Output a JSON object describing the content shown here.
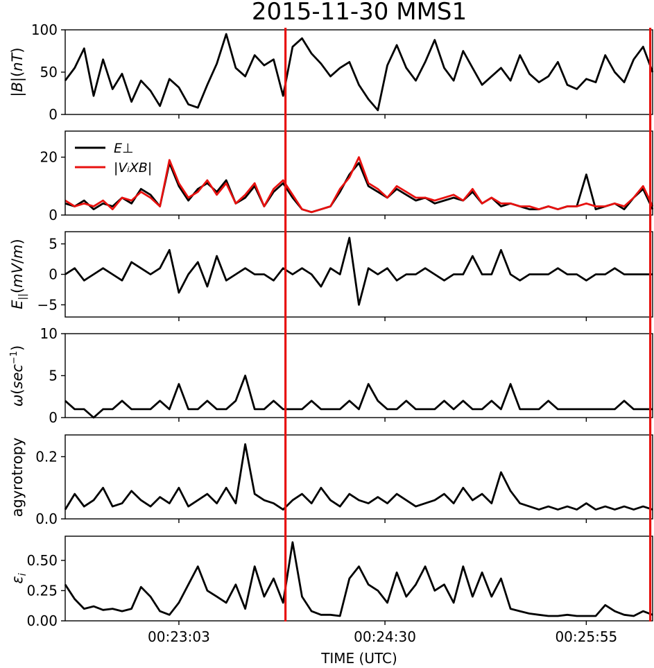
{
  "chart_data": {
    "type": "line",
    "title": "2015-11-30 MMS1",
    "xlabel": "TIME (UTC)",
    "x_tick_labels": [
      "00:23:03",
      "00:24:30",
      "00:25:55"
    ],
    "x_ticks_sec": [
      48,
      135,
      220
    ],
    "x_range_sec": [
      0,
      248
    ],
    "x_origin": "00:22:15",
    "markers": [
      {
        "time": "00:23:48",
        "time_sec": 93,
        "color": "#e8110f"
      },
      {
        "time": "00:26:22",
        "time_sec": 247,
        "color": "#e8110f"
      }
    ],
    "panels": [
      {
        "ylabel_text": "|B|(nT)",
        "ylim": [
          0,
          100
        ],
        "yticks": [
          "0",
          "50",
          "100"
        ],
        "series": [
          {
            "color": "#000000",
            "t": [
              0,
              4,
              8,
              12,
              16,
              20,
              24,
              28,
              32,
              36,
              40,
              44,
              48,
              52,
              56,
              60,
              64,
              68,
              72,
              76,
              80,
              84,
              88,
              92,
              96,
              100,
              104,
              108,
              112,
              116,
              120,
              124,
              128,
              132,
              136,
              140,
              144,
              148,
              152,
              156,
              160,
              164,
              168,
              172,
              176,
              180,
              184,
              188,
              192,
              196,
              200,
              204,
              208,
              212,
              216,
              220,
              224,
              228,
              232,
              236,
              240,
              244,
              248
            ],
            "y": [
              40,
              55,
              78,
              22,
              65,
              30,
              48,
              15,
              40,
              28,
              10,
              42,
              32,
              12,
              8,
              35,
              60,
              95,
              55,
              45,
              70,
              58,
              65,
              22,
              80,
              90,
              72,
              60,
              45,
              55,
              62,
              35,
              18,
              5,
              58,
              82,
              55,
              40,
              62,
              88,
              55,
              40,
              75,
              55,
              35,
              45,
              55,
              40,
              70,
              48,
              38,
              45,
              62,
              35,
              30,
              42,
              38,
              70,
              50,
              38,
              65,
              80,
              50
            ]
          }
        ]
      },
      {
        "ylabel_text": "",
        "ylim": [
          0,
          29
        ],
        "yticks": [
          "0",
          "20"
        ],
        "legend": [
          "E⊥",
          "|VᵢXB|"
        ],
        "legend_position": "upper-left",
        "series": [
          {
            "name": "E⊥",
            "color": "#000000",
            "t": [
              0,
              4,
              8,
              12,
              16,
              20,
              24,
              28,
              32,
              36,
              40,
              44,
              48,
              52,
              56,
              60,
              64,
              68,
              72,
              76,
              80,
              84,
              88,
              92,
              96,
              100,
              104,
              108,
              112,
              116,
              120,
              124,
              128,
              132,
              136,
              140,
              144,
              148,
              152,
              156,
              160,
              164,
              168,
              172,
              176,
              180,
              184,
              188,
              192,
              196,
              200,
              204,
              208,
              212,
              216,
              220,
              224,
              228,
              232,
              236,
              240,
              244,
              248
            ],
            "y": [
              4,
              3,
              5,
              2,
              4,
              3,
              6,
              4,
              9,
              7,
              3,
              18,
              10,
              5,
              9,
              11,
              8,
              12,
              4,
              6,
              10,
              3,
              8,
              11,
              6,
              2,
              1,
              2,
              3,
              8,
              14,
              18,
              10,
              8,
              6,
              9,
              7,
              5,
              6,
              4,
              5,
              6,
              5,
              8,
              4,
              6,
              3,
              4,
              3,
              2,
              2,
              3,
              2,
              3,
              3,
              14,
              2,
              3,
              4,
              2,
              6,
              9,
              2
            ]
          },
          {
            "name": "|VᵢXB|",
            "color": "#e8110f",
            "t": [
              0,
              4,
              8,
              12,
              16,
              20,
              24,
              28,
              32,
              36,
              40,
              44,
              48,
              52,
              56,
              60,
              64,
              68,
              72,
              76,
              80,
              84,
              88,
              92,
              96,
              100,
              104,
              108,
              112,
              116,
              120,
              124,
              128,
              132,
              136,
              140,
              144,
              148,
              152,
              156,
              160,
              164,
              168,
              172,
              176,
              180,
              184,
              188,
              192,
              196,
              200,
              204,
              208,
              212,
              216,
              220,
              224,
              228,
              232,
              236,
              240,
              244,
              248
            ],
            "y": [
              5,
              3,
              4,
              3,
              5,
              2,
              6,
              5,
              8,
              6,
              3,
              19,
              11,
              6,
              8,
              12,
              7,
              11,
              4,
              7,
              11,
              3,
              9,
              12,
              7,
              2,
              1,
              2,
              3,
              9,
              13,
              20,
              11,
              9,
              6,
              10,
              8,
              6,
              6,
              5,
              6,
              7,
              5,
              9,
              4,
              6,
              4,
              4,
              3,
              3,
              2,
              3,
              2,
              3,
              3,
              4,
              3,
              3,
              4,
              3,
              6,
              10,
              3
            ]
          }
        ]
      },
      {
        "ylabel_text": "",
        "ylim": [
          -7,
          7
        ],
        "yticks": [
          "−5",
          "0",
          "5"
        ],
        "series": [
          {
            "color": "#000000",
            "t": [
              0,
              4,
              8,
              12,
              16,
              20,
              24,
              28,
              32,
              36,
              40,
              44,
              48,
              52,
              56,
              60,
              64,
              68,
              72,
              76,
              80,
              84,
              88,
              92,
              96,
              100,
              104,
              108,
              112,
              116,
              120,
              124,
              128,
              132,
              136,
              140,
              144,
              148,
              152,
              156,
              160,
              164,
              168,
              172,
              176,
              180,
              184,
              188,
              192,
              196,
              200,
              204,
              208,
              212,
              216,
              220,
              224,
              228,
              232,
              236,
              240,
              244,
              248
            ],
            "y": [
              0,
              1,
              -1,
              0,
              1,
              0,
              -1,
              2,
              1,
              0,
              1,
              4,
              -3,
              0,
              2,
              -2,
              3,
              -1,
              0,
              1,
              0,
              0,
              -1,
              1,
              0,
              1,
              0,
              -2,
              1,
              0,
              6,
              -5,
              1,
              0,
              1,
              -1,
              0,
              0,
              1,
              0,
              -1,
              0,
              0,
              3,
              0,
              0,
              4,
              0,
              -1,
              0,
              0,
              0,
              1,
              0,
              0,
              -1,
              0,
              0,
              1,
              0,
              0,
              0,
              0
            ]
          }
        ]
      },
      {
        "ylabel_text": "",
        "ylim": [
          0,
          10
        ],
        "yticks": [
          "0",
          "5",
          "10"
        ],
        "series": [
          {
            "color": "#000000",
            "t": [
              0,
              4,
              8,
              12,
              16,
              20,
              24,
              28,
              32,
              36,
              40,
              44,
              48,
              52,
              56,
              60,
              64,
              68,
              72,
              76,
              80,
              84,
              88,
              92,
              96,
              100,
              104,
              108,
              112,
              116,
              120,
              124,
              128,
              132,
              136,
              140,
              144,
              148,
              152,
              156,
              160,
              164,
              168,
              172,
              176,
              180,
              184,
              188,
              192,
              196,
              200,
              204,
              208,
              212,
              216,
              220,
              224,
              228,
              232,
              236,
              240,
              244,
              248
            ],
            "y": [
              2,
              1,
              1,
              0,
              1,
              1,
              2,
              1,
              1,
              1,
              2,
              1,
              4,
              1,
              1,
              2,
              1,
              1,
              2,
              5,
              1,
              1,
              2,
              1,
              1,
              1,
              2,
              1,
              1,
              1,
              2,
              1,
              4,
              2,
              1,
              1,
              2,
              1,
              1,
              1,
              2,
              1,
              2,
              1,
              1,
              2,
              1,
              4,
              1,
              1,
              1,
              2,
              1,
              1,
              1,
              1,
              1,
              1,
              1,
              2,
              1,
              1,
              1
            ]
          }
        ]
      },
      {
        "ylabel_text": "agyrotropy",
        "ylim": [
          0,
          0.27
        ],
        "yticks": [
          "0.0",
          "0.2"
        ],
        "series": [
          {
            "color": "#000000",
            "t": [
              0,
              4,
              8,
              12,
              16,
              20,
              24,
              28,
              32,
              36,
              40,
              44,
              48,
              52,
              56,
              60,
              64,
              68,
              72,
              76,
              80,
              84,
              88,
              92,
              96,
              100,
              104,
              108,
              112,
              116,
              120,
              124,
              128,
              132,
              136,
              140,
              144,
              148,
              152,
              156,
              160,
              164,
              168,
              172,
              176,
              180,
              184,
              188,
              192,
              196,
              200,
              204,
              208,
              212,
              216,
              220,
              224,
              228,
              232,
              236,
              240,
              244,
              248
            ],
            "y": [
              0.03,
              0.08,
              0.04,
              0.06,
              0.1,
              0.04,
              0.05,
              0.09,
              0.06,
              0.04,
              0.07,
              0.05,
              0.1,
              0.04,
              0.06,
              0.08,
              0.05,
              0.1,
              0.05,
              0.24,
              0.08,
              0.06,
              0.05,
              0.03,
              0.06,
              0.08,
              0.05,
              0.1,
              0.06,
              0.04,
              0.08,
              0.06,
              0.05,
              0.07,
              0.05,
              0.08,
              0.06,
              0.04,
              0.05,
              0.06,
              0.08,
              0.05,
              0.1,
              0.06,
              0.08,
              0.05,
              0.15,
              0.09,
              0.05,
              0.04,
              0.03,
              0.04,
              0.03,
              0.04,
              0.03,
              0.05,
              0.03,
              0.04,
              0.03,
              0.04,
              0.03,
              0.04,
              0.03
            ]
          }
        ]
      },
      {
        "ylabel_text": "",
        "ylim": [
          0,
          0.7
        ],
        "yticks": [
          "0.00",
          "0.25",
          "0.50"
        ],
        "series": [
          {
            "color": "#000000",
            "t": [
              0,
              4,
              8,
              12,
              16,
              20,
              24,
              28,
              32,
              36,
              40,
              44,
              48,
              52,
              56,
              60,
              64,
              68,
              72,
              76,
              80,
              84,
              88,
              92,
              96,
              100,
              104,
              108,
              112,
              116,
              120,
              124,
              128,
              132,
              136,
              140,
              144,
              148,
              152,
              156,
              160,
              164,
              168,
              172,
              176,
              180,
              184,
              188,
              192,
              196,
              200,
              204,
              208,
              212,
              216,
              220,
              224,
              228,
              232,
              236,
              240,
              244,
              248
            ],
            "y": [
              0.3,
              0.18,
              0.1,
              0.12,
              0.09,
              0.1,
              0.08,
              0.1,
              0.28,
              0.2,
              0.08,
              0.05,
              0.15,
              0.3,
              0.45,
              0.25,
              0.2,
              0.15,
              0.3,
              0.1,
              0.45,
              0.2,
              0.35,
              0.15,
              0.65,
              0.2,
              0.08,
              0.05,
              0.05,
              0.04,
              0.35,
              0.45,
              0.3,
              0.25,
              0.15,
              0.4,
              0.2,
              0.3,
              0.45,
              0.25,
              0.3,
              0.15,
              0.45,
              0.2,
              0.4,
              0.2,
              0.35,
              0.1,
              0.08,
              0.06,
              0.05,
              0.04,
              0.04,
              0.05,
              0.04,
              0.04,
              0.04,
              0.13,
              0.08,
              0.05,
              0.04,
              0.08,
              0.05
            ]
          }
        ]
      }
    ]
  }
}
